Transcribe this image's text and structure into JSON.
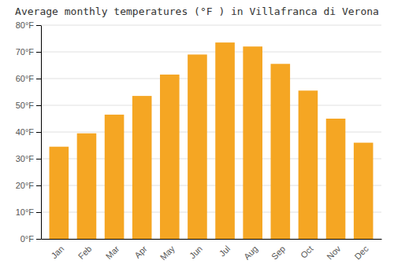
{
  "chart_data": {
    "type": "bar",
    "title": "Average monthly temperatures (°F ) in Villafranca di Verona",
    "categories": [
      "Jan",
      "Feb",
      "Mar",
      "Apr",
      "May",
      "Jun",
      "Jul",
      "Aug",
      "Sep",
      "Oct",
      "Nov",
      "Dec"
    ],
    "values": [
      34.5,
      39.5,
      46.5,
      53.5,
      61.5,
      69.0,
      73.5,
      72.0,
      65.5,
      55.5,
      45.0,
      36.0
    ],
    "color": "#F5A623",
    "ylim": [
      0,
      80
    ],
    "yticks": [
      {
        "value": 0,
        "label": "0°F"
      },
      {
        "value": 10,
        "label": "10°F"
      },
      {
        "value": 20,
        "label": "20°F"
      },
      {
        "value": 30,
        "label": "30°F"
      },
      {
        "value": 40,
        "label": "40°F"
      },
      {
        "value": 50,
        "label": "50°F"
      },
      {
        "value": 60,
        "label": "60°F"
      },
      {
        "value": 70,
        "label": "70°F"
      },
      {
        "value": 80,
        "label": "80°F"
      }
    ],
    "grid": true
  }
}
